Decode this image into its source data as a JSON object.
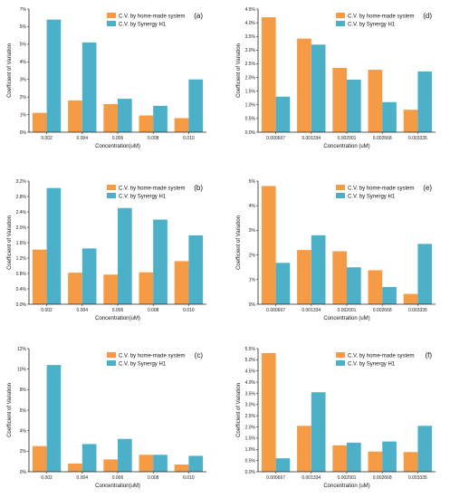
{
  "colors": {
    "home_made": "#f59a45",
    "synergy": "#4bb0c8",
    "axis": "#222222"
  },
  "chart_data": [
    {
      "id": "a",
      "panel_label": "(a)",
      "type": "bar",
      "title": "",
      "xlabel": "Concentration(uM)",
      "ylabel": "Coefficient of Variation",
      "categories": [
        "0.002",
        "0.004",
        "0.006",
        "0.008",
        "0.010"
      ],
      "y_ticks": [
        "0%",
        "1%",
        "2%",
        "3%",
        "4%",
        "5%",
        "6%",
        "7%"
      ],
      "ylim": [
        0,
        7
      ],
      "legend": "top-right",
      "series": [
        {
          "name": "C.V. by home-made system",
          "values": [
            1.1,
            1.8,
            1.6,
            0.95,
            0.8
          ]
        },
        {
          "name": "C.V. by Synergy H1",
          "values": [
            6.4,
            5.1,
            1.9,
            1.5,
            3.0
          ]
        }
      ]
    },
    {
      "id": "d",
      "panel_label": "(d)",
      "type": "bar",
      "title": "",
      "xlabel": "Concentration (uM)",
      "ylabel": "Coefficient of Variation",
      "categories": [
        "0.000667",
        "0.001334",
        "0.002001",
        "0.002668",
        "0.003335"
      ],
      "y_ticks": [
        "0.0%",
        "0.5%",
        "1.0%",
        "1.5%",
        "2.0%",
        "2.5%",
        "3.0%",
        "3.5%",
        "4.0%",
        "4.5%"
      ],
      "ylim": [
        0,
        4.5
      ],
      "legend": "top-right",
      "series": [
        {
          "name": "C.V. by home-made system",
          "values": [
            4.2,
            3.42,
            2.35,
            2.28,
            0.82
          ]
        },
        {
          "name": "C.V. by Synergy H1",
          "values": [
            1.3,
            3.2,
            1.92,
            1.1,
            2.22
          ]
        }
      ]
    },
    {
      "id": "b",
      "panel_label": "(b)",
      "type": "bar",
      "title": "",
      "xlabel": "Concentration(uM)",
      "ylabel": "Coefficient of Variation",
      "categories": [
        "0.002",
        "0.004",
        "0.006",
        "0.008",
        "0.010"
      ],
      "y_ticks": [
        "0.0%",
        "0.4%",
        "0.8%",
        "1.2%",
        "1.6%",
        "2.0%",
        "2.4%",
        "2.8%",
        "3.2%"
      ],
      "ylim": [
        0,
        3.2
      ],
      "legend": "top-right",
      "series": [
        {
          "name": "C.V. by home-made system",
          "values": [
            1.42,
            0.82,
            0.77,
            0.83,
            1.12
          ]
        },
        {
          "name": "C.V. by Synergy H1",
          "values": [
            3.02,
            1.45,
            2.5,
            2.2,
            1.79
          ]
        }
      ]
    },
    {
      "id": "e",
      "panel_label": "(e)",
      "type": "bar",
      "title": "",
      "xlabel": "Concentration (uM)",
      "ylabel": "Coefficient of Variation",
      "categories": [
        "0.000667",
        "0.001334",
        "0.002001",
        "0.002668",
        "0.003335"
      ],
      "y_ticks": [
        "0%",
        "1%",
        "2%",
        "3%",
        "4%",
        "5%"
      ],
      "ylim": [
        0,
        5
      ],
      "legend": "top-right",
      "series": [
        {
          "name": "C.V. by home-made system",
          "values": [
            4.8,
            2.2,
            2.15,
            1.38,
            0.42
          ]
        },
        {
          "name": "C.V. by Synergy H1",
          "values": [
            1.68,
            2.8,
            1.5,
            0.7,
            2.45
          ]
        }
      ]
    },
    {
      "id": "c",
      "panel_label": "(c)",
      "type": "bar",
      "title": "",
      "xlabel": "Concentration(uM)",
      "ylabel": "Coefficient of Variation",
      "categories": [
        "0.002",
        "0.004",
        "0.006",
        "0.008",
        "0.010"
      ],
      "y_ticks": [
        "0%",
        "2%",
        "4%",
        "6%",
        "8%",
        "10%",
        "12%"
      ],
      "ylim": [
        0,
        12
      ],
      "legend": "top-right",
      "series": [
        {
          "name": "C.V. by home-made system",
          "values": [
            2.5,
            0.8,
            1.2,
            1.65,
            0.7
          ]
        },
        {
          "name": "C.V. by Synergy H1",
          "values": [
            10.4,
            2.7,
            3.2,
            1.65,
            1.55
          ]
        }
      ]
    },
    {
      "id": "f",
      "panel_label": "(f)",
      "type": "bar",
      "title": "",
      "xlabel": "Concentration (uM)",
      "ylabel": "Coefficient of Variation",
      "categories": [
        "0.000667",
        "0.001334",
        "0.002001",
        "0.002668",
        "0.003335"
      ],
      "y_ticks": [
        "0.0%",
        "0.5%",
        "1.0%",
        "1.5%",
        "2.0%",
        "2.5%",
        "3.0%",
        "3.5%",
        "4.0%",
        "4.5%",
        "5.0%",
        "5.5%"
      ],
      "ylim": [
        0,
        5.5
      ],
      "legend": "top-right",
      "series": [
        {
          "name": "C.V. by home-made system",
          "values": [
            5.3,
            2.05,
            1.18,
            0.9,
            0.88
          ]
        },
        {
          "name": "C.V. by Synergy H1",
          "values": [
            0.6,
            3.55,
            1.3,
            1.35,
            2.05
          ]
        }
      ]
    }
  ]
}
